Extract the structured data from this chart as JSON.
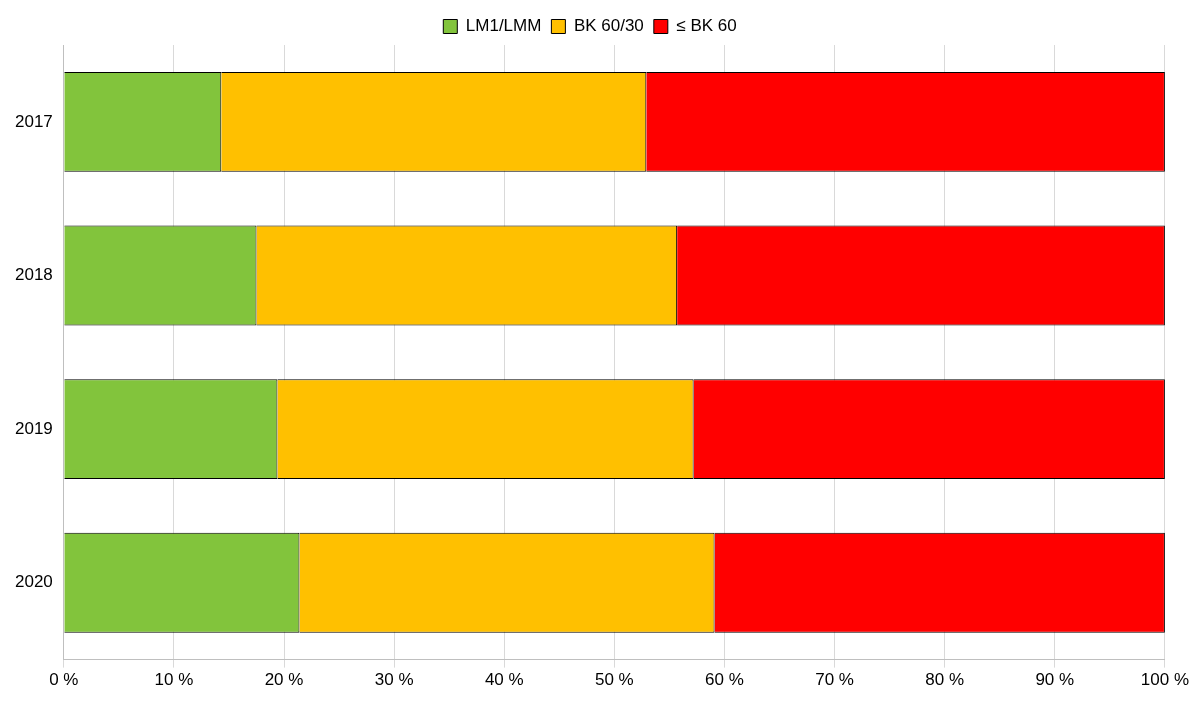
{
  "chart_data": {
    "type": "bar",
    "orientation": "horizontal",
    "stacked": true,
    "categories": [
      "2017",
      "2018",
      "2019",
      "2020"
    ],
    "series": [
      {
        "name": "LM1/LMM",
        "color": "#82c43c",
        "values": [
          14.3,
          17.5,
          19.4,
          21.4
        ]
      },
      {
        "name": "BK 60/30",
        "color": "#ffc000",
        "values": [
          38.6,
          38.2,
          37.8,
          37.7
        ]
      },
      {
        "name": "≤ BK 60",
        "color": "#ff0000",
        "values": [
          47.1,
          44.3,
          42.8,
          40.9
        ]
      }
    ],
    "xlim": [
      0,
      100
    ],
    "xticks": [
      {
        "value": 0,
        "label": "0 %"
      },
      {
        "value": 10,
        "label": "10 %"
      },
      {
        "value": 20,
        "label": "20 %"
      },
      {
        "value": 30,
        "label": "30 %"
      },
      {
        "value": 40,
        "label": "40 %"
      },
      {
        "value": 50,
        "label": "50 %"
      },
      {
        "value": 60,
        "label": "60 %"
      },
      {
        "value": 70,
        "label": "70 %"
      },
      {
        "value": 80,
        "label": "80 %"
      },
      {
        "value": 90,
        "label": "90 %"
      },
      {
        "value": 100,
        "label": "100 %"
      }
    ],
    "grid": "x",
    "legend": "top"
  }
}
